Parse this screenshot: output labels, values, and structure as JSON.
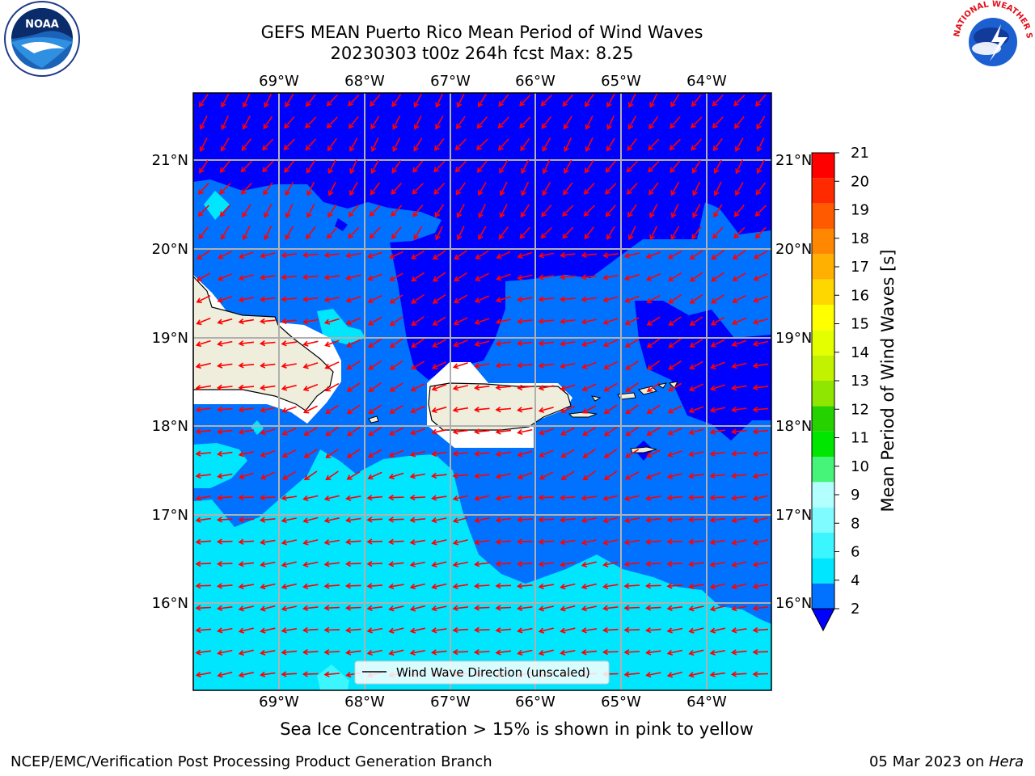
{
  "title": {
    "line1": "GEFS MEAN Puerto Rico Mean Period of Wind Waves",
    "line2": "20230303 t00z 264h fcst   Max: 8.25"
  },
  "map": {
    "lon_labels": [
      "69°W",
      "68°W",
      "67°W",
      "66°W",
      "65°W",
      "64°W"
    ],
    "lat_labels": [
      "21°N",
      "20°N",
      "19°N",
      "18°N",
      "17°N",
      "16°N"
    ],
    "legend_label": "Wind Wave Direction (unscaled)",
    "arrow_color": "#ff0000"
  },
  "colorbar": {
    "label": "Mean Period of Wind Waves [s]",
    "ticks": [
      "2",
      "4",
      "6",
      "8",
      "9",
      "10",
      "11",
      "12",
      "13",
      "14",
      "15",
      "16",
      "17",
      "18",
      "19",
      "20",
      "21"
    ],
    "colors": [
      "#0072ff",
      "#00e6ff",
      "#3bf5ff",
      "#7ffcff",
      "#b3ffff",
      "#46f47a",
      "#00e600",
      "#26d100",
      "#8fe600",
      "#c3f200",
      "#e3ff00",
      "#ffff00",
      "#ffd700",
      "#ffb000",
      "#ff8800",
      "#ff5a00",
      "#ff2a00",
      "#ff0000"
    ],
    "under_color": "#0000ff"
  },
  "note": "Sea Ice Concentration > 15% is shown in pink to yellow",
  "footer": {
    "left": "NCEP/EMC/Verification Post Processing Product Generation Branch",
    "date": "05 Mar 2023 on ",
    "machine": "Hera"
  },
  "logos": {
    "noaa_text": "NOAA",
    "nws_text": "NATIONAL WEATHER SERVICE"
  }
}
